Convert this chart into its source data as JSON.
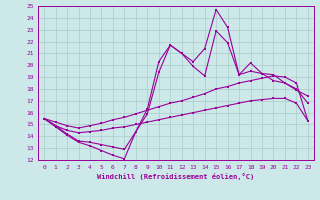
{
  "xlabel": "Windchill (Refroidissement éolien,°C)",
  "background_color": "#cce8e8",
  "line_color": "#990099",
  "grid_color": "#aacccc",
  "x_values": [
    0,
    1,
    2,
    3,
    4,
    5,
    6,
    7,
    8,
    9,
    10,
    11,
    12,
    13,
    14,
    15,
    16,
    17,
    18,
    19,
    20,
    21,
    22,
    23
  ],
  "line1": [
    15.5,
    14.8,
    14.1,
    13.5,
    13.2,
    12.8,
    12.4,
    12.1,
    14.4,
    16.3,
    20.3,
    21.7,
    21.0,
    20.3,
    21.4,
    24.7,
    23.2,
    19.2,
    20.2,
    19.3,
    19.2,
    18.5,
    18.0,
    16.8
  ],
  "line2": [
    15.5,
    14.9,
    14.2,
    13.6,
    13.5,
    13.3,
    13.1,
    12.9,
    14.4,
    15.9,
    19.4,
    21.7,
    21.0,
    19.9,
    19.1,
    22.9,
    21.9,
    19.2,
    19.5,
    19.3,
    18.7,
    18.5,
    17.9,
    17.4
  ],
  "line3": [
    15.5,
    15.2,
    14.9,
    14.7,
    14.9,
    15.1,
    15.4,
    15.6,
    15.9,
    16.2,
    16.5,
    16.8,
    17.0,
    17.3,
    17.6,
    18.0,
    18.2,
    18.5,
    18.7,
    18.9,
    19.1,
    19.0,
    18.5,
    15.3
  ],
  "line4": [
    15.5,
    14.9,
    14.5,
    14.3,
    14.4,
    14.5,
    14.7,
    14.8,
    15.0,
    15.2,
    15.4,
    15.6,
    15.8,
    16.0,
    16.2,
    16.4,
    16.6,
    16.8,
    17.0,
    17.1,
    17.2,
    17.2,
    16.8,
    15.3
  ],
  "ylim": [
    12,
    25
  ],
  "xlim": [
    -0.5,
    23.5
  ],
  "yticks": [
    12,
    13,
    14,
    15,
    16,
    17,
    18,
    19,
    20,
    21,
    22,
    23,
    24,
    25
  ],
  "xticks": [
    0,
    1,
    2,
    3,
    4,
    5,
    6,
    7,
    8,
    9,
    10,
    11,
    12,
    13,
    14,
    15,
    16,
    17,
    18,
    19,
    20,
    21,
    22,
    23
  ]
}
